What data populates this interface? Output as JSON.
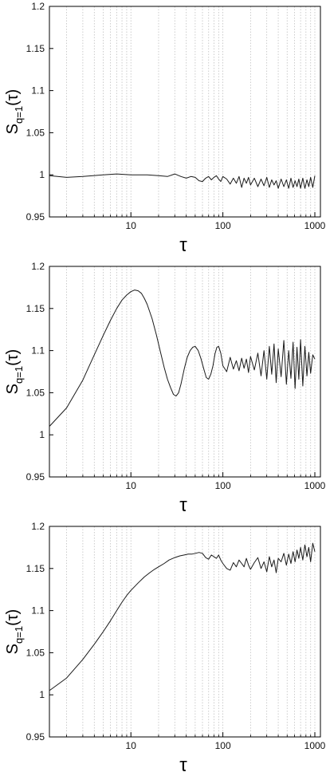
{
  "chart_data": [
    {
      "type": "line",
      "title": "",
      "xlabel": "τ",
      "ylabel_main": "S",
      "ylabel_sub": "q=1",
      "ylabel_suffix": "(τ)",
      "x_scale": "log",
      "xlim": [
        1.3,
        1150
      ],
      "ylim": [
        0.95,
        1.2
      ],
      "x_ticks": [
        10,
        100,
        1000
      ],
      "x_tick_labels": [
        "10",
        "100",
        "1000"
      ],
      "y_ticks": [
        0.95,
        1,
        1.05,
        1.1,
        1.15,
        1.2
      ],
      "y_tick_labels": [
        "0.95",
        "1",
        "1.05",
        "1.1",
        "1.15",
        "1.2"
      ],
      "grid": "vertical dotted lines at 1-9 × each decade",
      "color": "#1a1a1a",
      "series": [
        {
          "x": [
            1.3,
            2,
            3,
            5,
            7,
            10,
            15,
            20,
            25,
            30,
            35,
            40,
            45,
            50,
            55,
            60,
            65,
            70,
            75,
            80,
            85,
            90,
            95,
            100,
            110,
            120,
            130,
            140,
            150,
            160,
            170,
            180,
            190,
            200,
            220,
            240,
            260,
            280,
            300,
            320,
            340,
            360,
            380,
            400,
            430,
            460,
            490,
            520,
            550,
            580,
            610,
            640,
            670,
            700,
            740,
            780,
            820,
            860,
            900,
            950,
            1000
          ],
          "y": [
            0.999,
            0.997,
            0.998,
            1.0,
            1.001,
            1.0,
            1.0,
            0.999,
            0.998,
            1.001,
            0.998,
            0.996,
            0.998,
            0.997,
            0.993,
            0.992,
            0.996,
            0.998,
            0.994,
            0.997,
            0.999,
            0.995,
            0.992,
            0.998,
            0.995,
            0.989,
            0.996,
            0.99,
            0.998,
            0.985,
            0.996,
            0.99,
            0.997,
            0.988,
            0.996,
            0.986,
            0.995,
            0.987,
            0.997,
            0.985,
            0.994,
            0.988,
            0.993,
            0.984,
            0.995,
            0.986,
            0.994,
            0.984,
            0.996,
            0.985,
            0.993,
            0.986,
            0.995,
            0.984,
            0.996,
            0.984,
            0.994,
            0.986,
            0.997,
            0.985,
            0.999
          ]
        }
      ]
    },
    {
      "type": "line",
      "title": "",
      "xlabel": "τ",
      "ylabel_main": "S",
      "ylabel_sub": "q=1",
      "ylabel_suffix": "(τ)",
      "x_scale": "log",
      "xlim": [
        1.3,
        1150
      ],
      "ylim": [
        0.95,
        1.2
      ],
      "x_ticks": [
        10,
        100,
        1000
      ],
      "x_tick_labels": [
        "10",
        "100",
        "1000"
      ],
      "y_ticks": [
        0.95,
        1,
        1.05,
        1.1,
        1.15,
        1.2
      ],
      "y_tick_labels": [
        "0.95",
        "1",
        "1.05",
        "1.1",
        "1.15",
        "1.2"
      ],
      "grid": "vertical dotted lines at 1-9 × each decade",
      "color": "#1a1a1a",
      "series": [
        {
          "x": [
            1.3,
            2,
            3,
            4,
            5,
            6,
            7,
            8,
            9,
            10,
            11,
            12,
            13,
            14,
            15,
            17,
            19,
            21,
            23,
            25,
            27,
            29,
            31,
            33,
            35,
            38,
            41,
            44,
            47,
            50,
            54,
            58,
            62,
            66,
            70,
            74,
            78,
            82,
            86,
            90,
            95,
            100,
            110,
            120,
            130,
            140,
            150,
            160,
            170,
            180,
            190,
            200,
            220,
            240,
            260,
            280,
            300,
            320,
            340,
            360,
            380,
            400,
            430,
            460,
            490,
            520,
            550,
            580,
            610,
            640,
            670,
            700,
            740,
            780,
            820,
            860,
            900,
            950,
            1000
          ],
          "y": [
            1.01,
            1.032,
            1.065,
            1.095,
            1.118,
            1.136,
            1.15,
            1.16,
            1.166,
            1.17,
            1.172,
            1.171,
            1.168,
            1.162,
            1.155,
            1.138,
            1.118,
            1.098,
            1.08,
            1.066,
            1.056,
            1.048,
            1.046,
            1.05,
            1.06,
            1.078,
            1.092,
            1.1,
            1.104,
            1.105,
            1.1,
            1.09,
            1.078,
            1.068,
            1.066,
            1.072,
            1.082,
            1.096,
            1.104,
            1.105,
            1.097,
            1.082,
            1.075,
            1.092,
            1.078,
            1.088,
            1.076,
            1.091,
            1.079,
            1.09,
            1.074,
            1.093,
            1.077,
            1.097,
            1.07,
            1.1,
            1.066,
            1.105,
            1.072,
            1.108,
            1.062,
            1.102,
            1.069,
            1.112,
            1.06,
            1.1,
            1.067,
            1.11,
            1.055,
            1.104,
            1.066,
            1.113,
            1.058,
            1.105,
            1.07,
            1.098,
            1.073,
            1.095,
            1.09
          ]
        }
      ]
    },
    {
      "type": "line",
      "title": "",
      "xlabel": "τ",
      "ylabel_main": "S",
      "ylabel_sub": "q=1",
      "ylabel_suffix": "(τ)",
      "x_scale": "log",
      "xlim": [
        1.3,
        1150
      ],
      "ylim": [
        0.95,
        1.2
      ],
      "x_ticks": [
        10,
        100,
        1000
      ],
      "x_tick_labels": [
        "10",
        "100",
        "1000"
      ],
      "y_ticks": [
        0.95,
        1,
        1.05,
        1.1,
        1.15,
        1.2
      ],
      "y_tick_labels": [
        "0.95",
        "1",
        "1.05",
        "1.1",
        "1.15",
        "1.2"
      ],
      "grid": "vertical dotted lines at 1-9 × each decade",
      "color": "#1a1a1a",
      "series": [
        {
          "x": [
            1.3,
            2,
            3,
            4,
            5,
            6,
            7,
            8,
            9,
            10,
            12,
            14,
            16,
            18,
            20,
            23,
            26,
            30,
            34,
            38,
            42,
            46,
            50,
            55,
            60,
            65,
            70,
            75,
            80,
            85,
            90,
            95,
            100,
            110,
            120,
            130,
            140,
            150,
            160,
            170,
            180,
            190,
            200,
            220,
            240,
            260,
            280,
            300,
            320,
            340,
            360,
            380,
            400,
            430,
            460,
            490,
            520,
            550,
            580,
            610,
            640,
            670,
            700,
            740,
            780,
            820,
            860,
            900,
            950,
            1000
          ],
          "y": [
            1.005,
            1.02,
            1.042,
            1.06,
            1.075,
            1.088,
            1.1,
            1.11,
            1.118,
            1.124,
            1.133,
            1.14,
            1.145,
            1.149,
            1.152,
            1.156,
            1.16,
            1.163,
            1.165,
            1.166,
            1.167,
            1.167,
            1.168,
            1.169,
            1.168,
            1.163,
            1.161,
            1.166,
            1.164,
            1.162,
            1.166,
            1.16,
            1.156,
            1.15,
            1.148,
            1.157,
            1.152,
            1.16,
            1.156,
            1.152,
            1.162,
            1.154,
            1.149,
            1.157,
            1.163,
            1.15,
            1.158,
            1.146,
            1.164,
            1.152,
            1.16,
            1.145,
            1.162,
            1.158,
            1.168,
            1.154,
            1.167,
            1.156,
            1.17,
            1.158,
            1.172,
            1.162,
            1.175,
            1.16,
            1.178,
            1.164,
            1.175,
            1.158,
            1.18,
            1.17
          ]
        }
      ]
    }
  ]
}
